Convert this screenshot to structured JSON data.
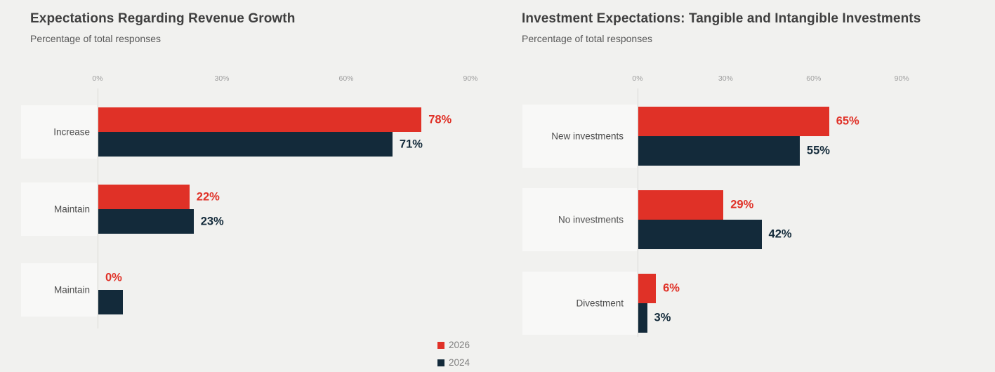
{
  "page": {
    "background_color": "#f1f1ef"
  },
  "chart_data": [
    {
      "type": "bar",
      "orientation": "horizontal",
      "title": "Expectations Regarding Revenue Growth",
      "subtitle": "Percentage of total responses",
      "categories": [
        "Increase",
        "Maintain",
        "Maintain"
      ],
      "series": [
        {
          "name": "2026",
          "color": "#e03127",
          "values": [
            78,
            22,
            0
          ],
          "value_labels": [
            "78%",
            "22%",
            "0%"
          ]
        },
        {
          "name": "2024",
          "color": "#132a3a",
          "values": [
            71,
            23,
            6
          ],
          "value_labels": [
            "71%",
            "23%",
            ""
          ]
        }
      ],
      "xlim": [
        0,
        90
      ],
      "tick_values": [
        0,
        30,
        60,
        90
      ],
      "tick_labels": [
        "0%",
        "30%",
        "60%",
        "90%"
      ],
      "grid": "off",
      "legend": {
        "visible": true,
        "position": "bottom-right",
        "entries": [
          "2026",
          "2024"
        ]
      }
    },
    {
      "type": "bar",
      "orientation": "horizontal",
      "title": "Investment Expectations: Tangible and Intangible Investments",
      "subtitle": "Percentage of total responses",
      "categories": [
        "New investments",
        "No investments",
        "Divestment"
      ],
      "series": [
        {
          "name": "2026",
          "color": "#e03127",
          "values": [
            65,
            29,
            6
          ],
          "value_labels": [
            "65%",
            "29%",
            "6%"
          ]
        },
        {
          "name": "2024",
          "color": "#132a3a",
          "values": [
            55,
            42,
            3
          ],
          "value_labels": [
            "55%",
            "42%",
            "3%"
          ]
        }
      ],
      "xlim": [
        0,
        90
      ],
      "tick_values": [
        0,
        30,
        60,
        90
      ],
      "tick_labels": [
        "0%",
        "30%",
        "60%",
        "90%"
      ],
      "grid": "off",
      "legend": {
        "visible": false,
        "entries": []
      }
    }
  ]
}
